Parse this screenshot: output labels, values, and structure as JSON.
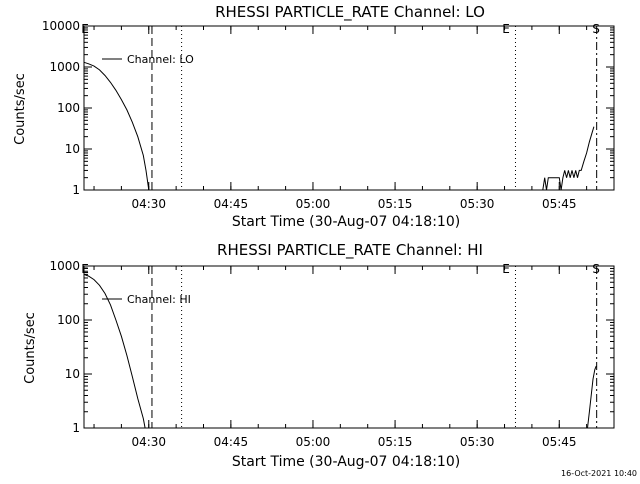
{
  "footer": {
    "timestamp": "16-Oct-2021 10:40"
  },
  "chart_data": [
    {
      "type": "line",
      "title": "RHESSI PARTICLE_RATE Channel: LO",
      "xlabel": "Start Time (30-Aug-07 04:18:10)",
      "ylabel": "Counts/sec",
      "yscale": "log",
      "xlim": [
        "04:18:10",
        "05:55:00"
      ],
      "ylim": [
        1,
        10000
      ],
      "x_ticks": [
        "04:30",
        "04:45",
        "05:00",
        "05:15",
        "05:30",
        "05:45"
      ],
      "y_ticks": [
        "1",
        "10",
        "100",
        "1000",
        "10000"
      ],
      "legend": [
        "Channel: LO"
      ],
      "legend_position": "top-left",
      "marker_labels": [
        "E",
        "E",
        "S"
      ],
      "series": [
        {
          "name": "Channel: LO",
          "points": [
            [
              "04:18:10",
              1300
            ],
            [
              "04:19:00",
              1200
            ],
            [
              "04:20:00",
              1050
            ],
            [
              "04:21:00",
              850
            ],
            [
              "04:22:00",
              620
            ],
            [
              "04:23:00",
              420
            ],
            [
              "04:24:00",
              270
            ],
            [
              "04:25:00",
              160
            ],
            [
              "04:26:00",
              90
            ],
            [
              "04:27:00",
              45
            ],
            [
              "04:28:00",
              20
            ],
            [
              "04:29:00",
              7
            ],
            [
              "04:29:30",
              3
            ],
            [
              "04:30:00",
              1
            ],
            [
              "05:42:00",
              1
            ],
            [
              "05:42:20",
              2
            ],
            [
              "05:42:40",
              1
            ],
            [
              "05:43:00",
              2
            ],
            [
              "05:45:00",
              2
            ],
            [
              "05:45:20",
              1
            ],
            [
              "05:45:40",
              2
            ],
            [
              "05:46:00",
              3
            ],
            [
              "05:46:20",
              2
            ],
            [
              "05:46:40",
              3
            ],
            [
              "05:47:00",
              2
            ],
            [
              "05:47:20",
              3
            ],
            [
              "05:47:40",
              2
            ],
            [
              "05:48:00",
              3
            ],
            [
              "05:48:20",
              2
            ],
            [
              "05:48:40",
              3
            ],
            [
              "05:49:00",
              3
            ],
            [
              "05:49:30",
              5
            ],
            [
              "05:50:00",
              8
            ],
            [
              "05:50:30",
              15
            ],
            [
              "05:51:00",
              25
            ],
            [
              "05:51:20",
              35
            ]
          ]
        }
      ],
      "markers": [
        {
          "time": "04:30:35",
          "style": "dashed"
        },
        {
          "time": "04:36:00",
          "style": "dotted"
        },
        {
          "time": "05:37:00",
          "style": "dotted"
        },
        {
          "time": "05:51:50",
          "style": "dash-dot"
        }
      ]
    },
    {
      "type": "line",
      "title": "RHESSI PARTICLE_RATE Channel: HI",
      "xlabel": "Start Time (30-Aug-07 04:18:10)",
      "ylabel": "Counts/sec",
      "yscale": "log",
      "xlim": [
        "04:18:10",
        "05:55:00"
      ],
      "ylim": [
        1,
        1000
      ],
      "x_ticks": [
        "04:30",
        "04:45",
        "05:00",
        "05:15",
        "05:30",
        "05:45"
      ],
      "y_ticks": [
        "1",
        "10",
        "100",
        "1000"
      ],
      "legend": [
        "Channel: HI"
      ],
      "legend_position": "top-left",
      "marker_labels": [
        "E",
        "E",
        "S"
      ],
      "series": [
        {
          "name": "Channel: HI",
          "points": [
            [
              "04:18:10",
              700
            ],
            [
              "04:19:00",
              650
            ],
            [
              "04:20:00",
              560
            ],
            [
              "04:21:00",
              440
            ],
            [
              "04:22:00",
              310
            ],
            [
              "04:23:00",
              190
            ],
            [
              "04:24:00",
              100
            ],
            [
              "04:25:00",
              50
            ],
            [
              "04:26:00",
              22
            ],
            [
              "04:27:00",
              9
            ],
            [
              "04:28:00",
              3.5
            ],
            [
              "04:29:00",
              1.5
            ],
            [
              "04:29:20",
              1
            ],
            [
              "05:50:10",
              1
            ],
            [
              "05:50:30",
              2
            ],
            [
              "05:50:50",
              4
            ],
            [
              "05:51:10",
              8
            ],
            [
              "05:51:30",
              12
            ],
            [
              "05:51:45",
              14
            ]
          ]
        }
      ],
      "markers": [
        {
          "time": "04:30:35",
          "style": "dashed"
        },
        {
          "time": "04:36:00",
          "style": "dotted"
        },
        {
          "time": "05:37:00",
          "style": "dotted"
        },
        {
          "time": "05:51:50",
          "style": "dash-dot"
        }
      ]
    }
  ]
}
